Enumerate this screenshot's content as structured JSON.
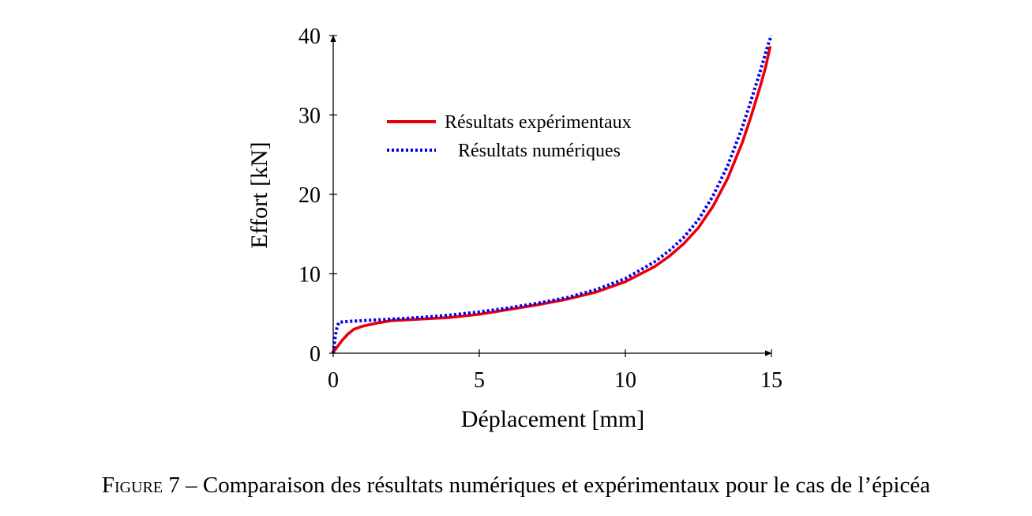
{
  "chart_data": {
    "type": "line",
    "title": "",
    "xlabel": "Déplacement [mm]",
    "ylabel": "Effort [kN]",
    "xlim": [
      0,
      15
    ],
    "ylim": [
      0,
      40
    ],
    "xticks": [
      0,
      5,
      10,
      15
    ],
    "yticks": [
      0,
      10,
      20,
      30,
      40
    ],
    "grid": false,
    "legend_position": "upper-left",
    "series": [
      {
        "name": "Résultats expérimentaux",
        "color": "#e8000b",
        "style": "solid",
        "x": [
          0,
          0.1,
          0.2,
          0.3,
          0.5,
          0.7,
          1.0,
          1.5,
          2,
          3,
          4,
          5,
          6,
          7,
          8,
          9,
          10,
          11,
          11.5,
          12,
          12.5,
          13,
          13.5,
          14,
          14.3,
          14.6,
          14.8,
          14.95
        ],
        "y": [
          0.2,
          0.6,
          1.1,
          1.6,
          2.4,
          3.0,
          3.4,
          3.8,
          4.1,
          4.3,
          4.5,
          4.9,
          5.5,
          6.1,
          6.8,
          7.7,
          9.0,
          10.9,
          12.2,
          13.8,
          15.8,
          18.5,
          22.0,
          26.5,
          29.8,
          33.4,
          36.0,
          38.5
        ]
      },
      {
        "name": "Résultats numériques",
        "color": "#0000ee",
        "style": "dotted",
        "x": [
          0,
          0.05,
          0.1,
          0.15,
          0.2,
          0.5,
          1,
          2,
          3,
          4,
          5,
          6,
          7,
          8,
          9,
          10,
          11,
          11.5,
          12,
          12.5,
          13,
          13.5,
          14,
          14.3,
          14.6,
          14.8,
          14.9,
          15
        ],
        "y": [
          0,
          1.5,
          2.8,
          3.5,
          3.9,
          4.0,
          4.1,
          4.3,
          4.5,
          4.8,
          5.2,
          5.7,
          6.3,
          7.0,
          8.0,
          9.4,
          11.5,
          12.9,
          14.6,
          16.8,
          19.8,
          23.6,
          28.4,
          31.8,
          35.3,
          37.8,
          39.0,
          40.0
        ]
      }
    ]
  },
  "caption": {
    "label": "Figure",
    "number_text": " 7 – Comparaison des résultats numériques et expérimentaux pour le cas de l’épicéa"
  }
}
